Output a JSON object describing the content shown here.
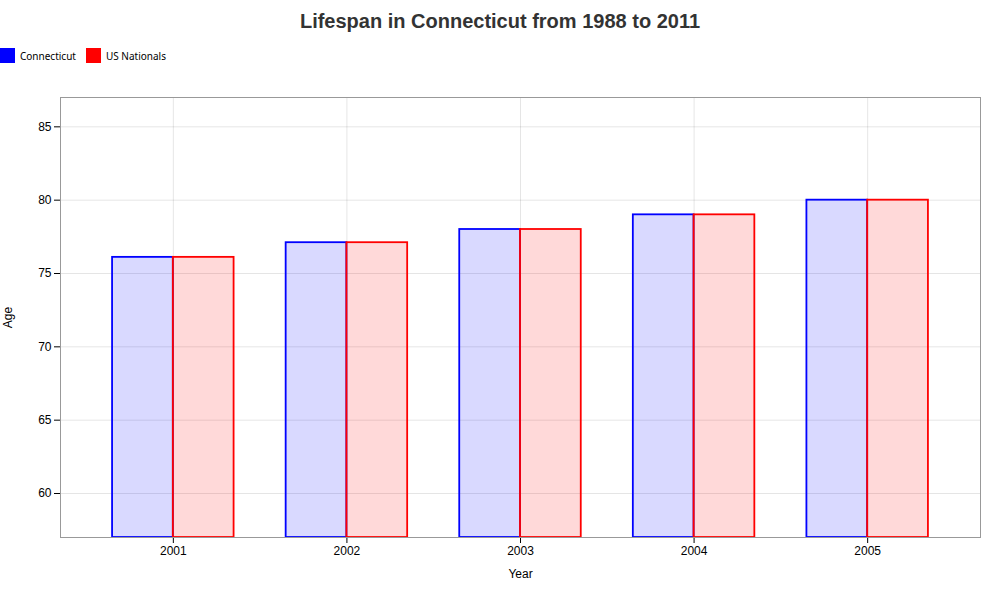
{
  "chart_data": {
    "type": "bar",
    "title": "Lifespan in Connecticut from 1988 to 2011",
    "xlabel": "Year",
    "ylabel": "Age",
    "categories": [
      "2001",
      "2002",
      "2003",
      "2004",
      "2005"
    ],
    "series": [
      {
        "name": "Connecticut",
        "color": "#0000ff",
        "values": [
          76.1,
          77.1,
          78.0,
          79.0,
          80.0
        ]
      },
      {
        "name": "US Nationals",
        "color": "#ff0000",
        "values": [
          76.1,
          77.1,
          78.0,
          79.0,
          80.0
        ]
      }
    ],
    "ylim": [
      57,
      87
    ],
    "yticks": [
      60,
      65,
      70,
      75,
      80,
      85
    ],
    "grid": true,
    "legend": "top"
  }
}
